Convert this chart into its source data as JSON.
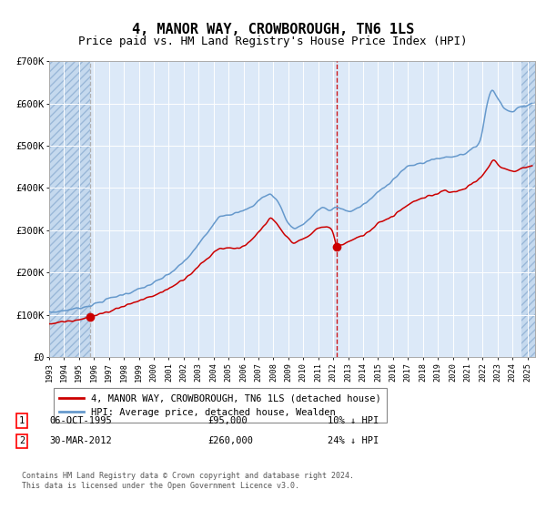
{
  "title": "4, MANOR WAY, CROWBOROUGH, TN6 1LS",
  "subtitle": "Price paid vs. HM Land Registry's House Price Index (HPI)",
  "ylim": [
    0,
    700000
  ],
  "yticks": [
    0,
    100000,
    200000,
    300000,
    400000,
    500000,
    600000,
    700000
  ],
  "ytick_labels": [
    "£0",
    "£100K",
    "£200K",
    "£300K",
    "£400K",
    "£500K",
    "£600K",
    "£700K"
  ],
  "bg_color": "#dce9f8",
  "hatch_color": "#c5d9ee",
  "grid_color": "#ffffff",
  "red_line_color": "#cc0000",
  "blue_line_color": "#6699cc",
  "marker_color": "#cc0000",
  "vline1_color": "#aaaaaa",
  "vline2_color": "#cc0000",
  "transaction1_date": "06-OCT-1995",
  "transaction1_price": 95000,
  "transaction1_label": "10% ↓ HPI",
  "transaction2_date": "30-MAR-2012",
  "transaction2_price": 260000,
  "transaction2_label": "24% ↓ HPI",
  "legend1": "4, MANOR WAY, CROWBOROUGH, TN6 1LS (detached house)",
  "legend2": "HPI: Average price, detached house, Wealden",
  "footnote": "Contains HM Land Registry data © Crown copyright and database right 2024.\nThis data is licensed under the Open Government Licence v3.0.",
  "title_fontsize": 11,
  "subtitle_fontsize": 9,
  "tick_fontsize": 7.5,
  "xmin": 1993,
  "xmax": 2025.5,
  "hatch_start": 1993,
  "hatch1_end": 1995.75,
  "hatch2_start": 2024.6,
  "hatch2_end": 2025.5,
  "vline1_x": 1995.75,
  "vline2_x": 2012.22,
  "marker1_x": 1995.75,
  "marker1_y": 95000,
  "marker2_x": 2012.22,
  "marker2_y": 260000
}
